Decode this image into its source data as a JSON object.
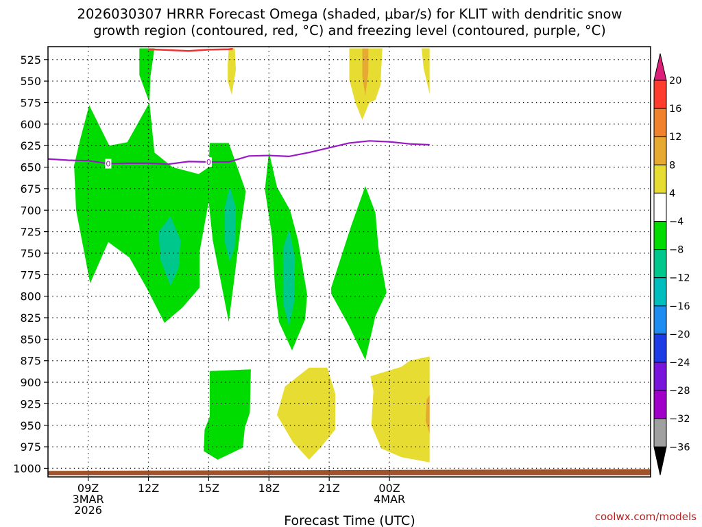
{
  "chart_data": {
    "type": "time-height cross-section",
    "title_line1": "2026030307 HRRR Forecast Omega (shaded, μbar/s) for KLIT with dendritic snow",
    "title_line2": "growth region (contoured, red, °C) and freezing level (contoured, purple, °C)",
    "xlabel": "Forecast Time (UTC)",
    "credit": "coolwx.com/models",
    "x_range_hours": [
      7,
      37
    ],
    "y_range_mb": [
      1010,
      510
    ],
    "y_ticks": [
      525,
      550,
      575,
      600,
      625,
      650,
      675,
      700,
      725,
      750,
      775,
      800,
      825,
      850,
      875,
      900,
      925,
      950,
      975,
      1000
    ],
    "x_ticks": [
      {
        "hour": 9,
        "lines": [
          "09Z",
          "3MAR",
          "2026"
        ]
      },
      {
        "hour": 12,
        "lines": [
          "12Z"
        ]
      },
      {
        "hour": 15,
        "lines": [
          "15Z"
        ]
      },
      {
        "hour": 18,
        "lines": [
          "18Z"
        ]
      },
      {
        "hour": 21,
        "lines": [
          "21Z"
        ]
      },
      {
        "hour": 24,
        "lines": [
          "00Z",
          "4MAR"
        ]
      }
    ],
    "grid": true,
    "colorbar": {
      "position": "right",
      "labels": [
        "20",
        "16",
        "12",
        "8",
        "4",
        "−4",
        "−8",
        "−12",
        "−16",
        "−20",
        "−24",
        "−28",
        "−32",
        "−36"
      ],
      "colors": [
        "#dc1e78",
        "#ff3c2d",
        "#f0822d",
        "#e6aa32",
        "#e6dc32",
        "#ffffff",
        "#00dc00",
        "#00c88c",
        "#00bebe",
        "#1e8cf0",
        "#1e3ce6",
        "#7814dc",
        "#a000c8",
        "#a0a0a0",
        "#000000"
      ]
    },
    "freezing_level": {
      "name": "freezing level",
      "value_label": "0",
      "color": "#9b18c8",
      "points": [
        [
          7,
          640.5
        ],
        [
          8,
          642
        ],
        [
          9,
          642.5
        ],
        [
          10,
          646
        ],
        [
          11,
          645.5
        ],
        [
          12,
          645.5
        ],
        [
          13,
          646.5
        ],
        [
          14,
          643.5
        ],
        [
          15,
          644
        ],
        [
          16,
          644
        ],
        [
          17,
          637
        ],
        [
          18,
          636.5
        ],
        [
          19,
          637.5
        ],
        [
          20,
          633
        ],
        [
          21,
          627.5
        ],
        [
          22,
          622
        ],
        [
          23,
          619.5
        ],
        [
          24,
          620.5
        ],
        [
          25,
          623
        ],
        [
          26,
          624
        ]
      ],
      "label_hours": [
        10,
        15
      ]
    },
    "dgz_contour": {
      "name": "dendritic snow growth region",
      "color": "#ee3333",
      "points": [
        [
          12,
          513
        ],
        [
          13,
          514
        ],
        [
          14,
          515
        ],
        [
          15,
          513.5
        ],
        [
          16,
          513
        ],
        [
          16.2,
          512.5
        ]
      ]
    },
    "omega_shaded": [
      {
        "level": "-4",
        "color": "#00dc00",
        "polygon": [
          [
            11.55,
            512
          ],
          [
            12.3,
            512
          ],
          [
            12.1,
            545
          ],
          [
            12.05,
            575
          ],
          [
            11.55,
            543
          ]
        ]
      },
      {
        "level": "-4",
        "color": "#00dc00",
        "polygon": [
          [
            12.05,
            575
          ],
          [
            12.3,
            633
          ],
          [
            13.2,
            650
          ],
          [
            14.5,
            658
          ],
          [
            15.0,
            650
          ],
          [
            15.05,
            622
          ],
          [
            16.0,
            622
          ],
          [
            16.85,
            678
          ],
          [
            16.6,
            718
          ],
          [
            16.3,
            775
          ],
          [
            16.0,
            830
          ],
          [
            15.2,
            735
          ],
          [
            15.0,
            690
          ],
          [
            14.55,
            748
          ],
          [
            14.55,
            790
          ],
          [
            13.7,
            813
          ],
          [
            12.8,
            831
          ],
          [
            11.9,
            790
          ],
          [
            11.05,
            755
          ],
          [
            10.0,
            737
          ],
          [
            9.1,
            785
          ],
          [
            8.4,
            700
          ],
          [
            8.3,
            648
          ],
          [
            8.6,
            618
          ],
          [
            9.05,
            578
          ],
          [
            10.05,
            625
          ],
          [
            10.95,
            621
          ]
        ]
      },
      {
        "level": "-8",
        "color": "#00c88c",
        "polygon": [
          [
            12.5,
            725
          ],
          [
            13.1,
            707
          ],
          [
            13.6,
            735
          ],
          [
            13.5,
            768
          ],
          [
            13.1,
            788
          ],
          [
            12.6,
            758
          ]
        ]
      },
      {
        "level": "-8",
        "color": "#00c88c",
        "polygon": [
          [
            15.8,
            697
          ],
          [
            16.05,
            672
          ],
          [
            16.35,
            697
          ],
          [
            16.3,
            743
          ],
          [
            16.05,
            760
          ],
          [
            15.8,
            737
          ]
        ]
      },
      {
        "level": "-4",
        "color": "#00dc00",
        "polygon": [
          [
            17.8,
            676
          ],
          [
            18.0,
            632
          ],
          [
            18.4,
            673
          ],
          [
            19.05,
            700
          ],
          [
            19.45,
            735
          ],
          [
            19.9,
            798
          ],
          [
            19.8,
            827
          ],
          [
            19.15,
            863
          ],
          [
            18.5,
            830
          ],
          [
            18.3,
            790
          ],
          [
            18.15,
            730
          ]
        ]
      },
      {
        "level": "-8",
        "color": "#00c88c",
        "polygon": [
          [
            18.7,
            745
          ],
          [
            19.0,
            722
          ],
          [
            19.3,
            755
          ],
          [
            19.25,
            808
          ],
          [
            19.0,
            835
          ],
          [
            18.7,
            808
          ]
        ]
      },
      {
        "level": "-4",
        "color": "#00dc00",
        "polygon": [
          [
            21.1,
            790
          ],
          [
            22.1,
            718
          ],
          [
            22.8,
            672
          ],
          [
            23.3,
            703
          ],
          [
            23.45,
            744
          ],
          [
            23.85,
            796
          ],
          [
            23.3,
            823
          ],
          [
            22.8,
            874
          ],
          [
            22.0,
            835
          ],
          [
            21.1,
            797
          ]
        ]
      },
      {
        "level": "-4",
        "color": "#00dc00",
        "polygon": [
          [
            15.05,
            887
          ],
          [
            17.1,
            885
          ],
          [
            17.05,
            935
          ],
          [
            16.8,
            953
          ],
          [
            16.7,
            976
          ],
          [
            15.45,
            990
          ],
          [
            14.75,
            980
          ],
          [
            14.8,
            955
          ],
          [
            15.05,
            940
          ]
        ]
      },
      {
        "level": "4",
        "color": "#e6dc32",
        "polygon": [
          [
            20.0,
            883
          ],
          [
            20.9,
            883
          ],
          [
            21.3,
            913
          ],
          [
            21.3,
            955
          ],
          [
            20.6,
            975
          ],
          [
            20.0,
            990
          ],
          [
            19.2,
            970
          ],
          [
            18.4,
            938
          ],
          [
            18.8,
            905
          ]
        ]
      },
      {
        "level": "4",
        "color": "#e6dc32",
        "polygon": [
          [
            23.05,
            893
          ],
          [
            24.6,
            882
          ],
          [
            25.0,
            875
          ],
          [
            26.0,
            870
          ],
          [
            26.0,
            993
          ],
          [
            24.6,
            987
          ],
          [
            23.6,
            977
          ],
          [
            23.1,
            950
          ],
          [
            23.2,
            910
          ]
        ]
      },
      {
        "level": "8",
        "color": "#e6aa32",
        "polygon": [
          [
            25.85,
            920
          ],
          [
            26.0,
            915
          ],
          [
            26.0,
            960
          ],
          [
            25.8,
            945
          ]
        ]
      },
      {
        "level": "4",
        "color": "#e6dc32",
        "polygon": [
          [
            16.0,
            512
          ],
          [
            16.3,
            512
          ],
          [
            16.35,
            537
          ],
          [
            16.15,
            566
          ],
          [
            15.95,
            550
          ],
          [
            15.95,
            530
          ]
        ]
      },
      {
        "level": "4",
        "color": "#e6dc32",
        "polygon": [
          [
            22.0,
            512
          ],
          [
            23.65,
            512
          ],
          [
            23.55,
            555
          ],
          [
            23.3,
            572
          ],
          [
            23.0,
            575
          ],
          [
            22.65,
            595
          ],
          [
            22.3,
            575
          ],
          [
            22.0,
            548
          ]
        ]
      },
      {
        "level": "8",
        "color": "#e6aa32",
        "polygon": [
          [
            22.65,
            512
          ],
          [
            22.95,
            512
          ],
          [
            22.95,
            540
          ],
          [
            22.8,
            567
          ],
          [
            22.65,
            545
          ]
        ]
      },
      {
        "level": "4",
        "color": "#e6dc32",
        "polygon": [
          [
            25.6,
            512
          ],
          [
            26.0,
            512
          ],
          [
            26.0,
            565
          ],
          [
            25.7,
            535
          ]
        ]
      }
    ],
    "surface_band": {
      "color": "#a0522d",
      "top_left_mb": 1003,
      "top_right_mb": 1001,
      "bottom_mb": 1008
    }
  }
}
